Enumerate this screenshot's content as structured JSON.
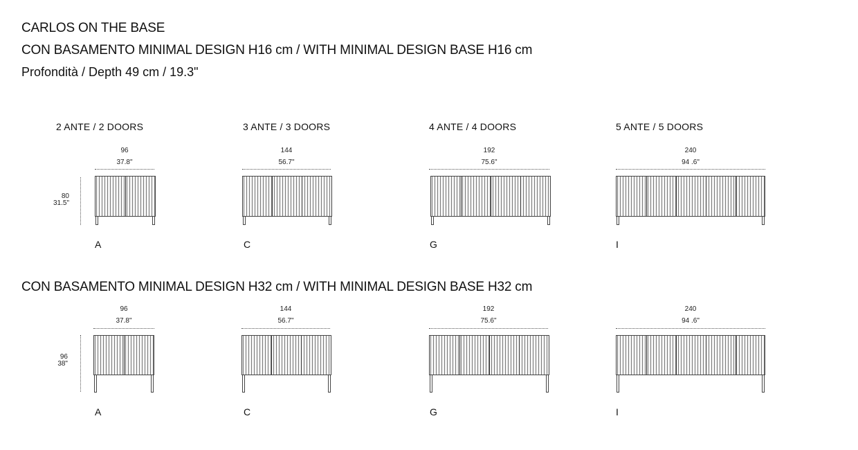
{
  "title": "CARLOS ON THE BASE",
  "section1_title": "CON BASAMENTO MINIMAL DESIGN H16 cm / WITH MINIMAL DESIGN BASE H16 cm",
  "depth_note": "Profondità / Depth 49 cm / 19.3\"",
  "section2_title": "CON BASAMENTO MINIMAL DESIGN H32 cm / WITH MINIMAL DESIGN BASE H32 cm",
  "columns": [
    {
      "doors": "2 ANTE / 2 DOORS",
      "width_cm": "96",
      "width_in": "37.8\"",
      "code": "A"
    },
    {
      "doors": "3 ANTE / 3 DOORS",
      "width_cm": "144",
      "width_in": "56.7\"",
      "code": "C"
    },
    {
      "doors": "4 ANTE / 4 DOORS",
      "width_cm": "192",
      "width_in": "75.6\"",
      "code": "G"
    },
    {
      "doors": "5 ANTE / 5 DOORS",
      "width_cm": "240",
      "width_in": "94 .6\"",
      "code": "I"
    }
  ],
  "row1_height": {
    "cm": "80",
    "in": "31.5\""
  },
  "row2_height": {
    "cm": "96",
    "in": "38\""
  },
  "colors": {
    "line": "#444444",
    "text": "#111111"
  }
}
